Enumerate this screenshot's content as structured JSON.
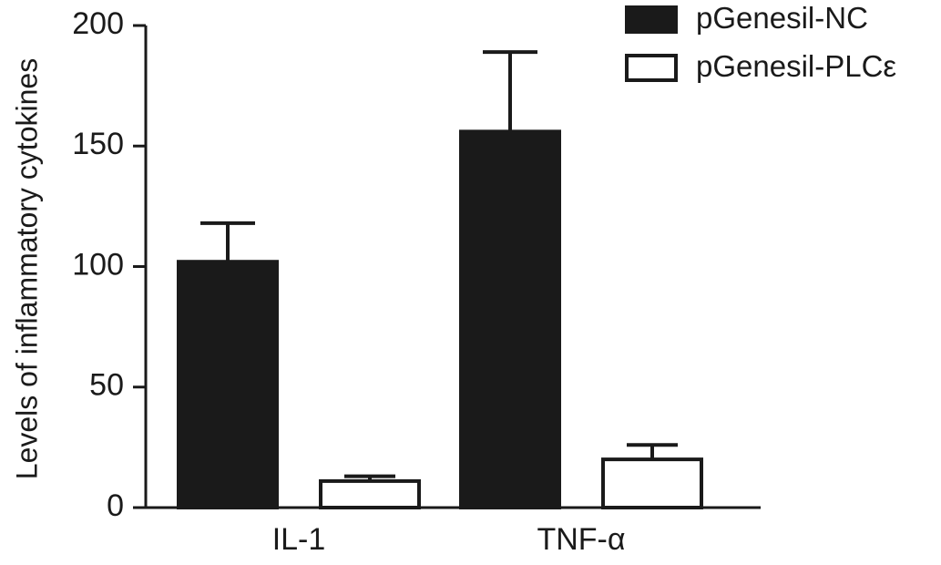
{
  "chart_data": {
    "type": "bar",
    "title": "",
    "xlabel": "",
    "ylabel": "Levels of inflammatory cytokines",
    "ylim": [
      0,
      200
    ],
    "yticks": [
      0,
      50,
      100,
      150,
      200
    ],
    "categories": [
      "IL-1",
      "TNF-α"
    ],
    "series": [
      {
        "name": "pGenesil-NC",
        "fill": "#1a1a1a",
        "values": [
          102,
          156
        ],
        "errors": [
          16,
          33
        ]
      },
      {
        "name": "pGenesil-PLCε",
        "fill": "#ffffff",
        "values": [
          11,
          20
        ],
        "errors": [
          2,
          6
        ]
      }
    ],
    "grid": false,
    "legend_position": "top-right"
  }
}
